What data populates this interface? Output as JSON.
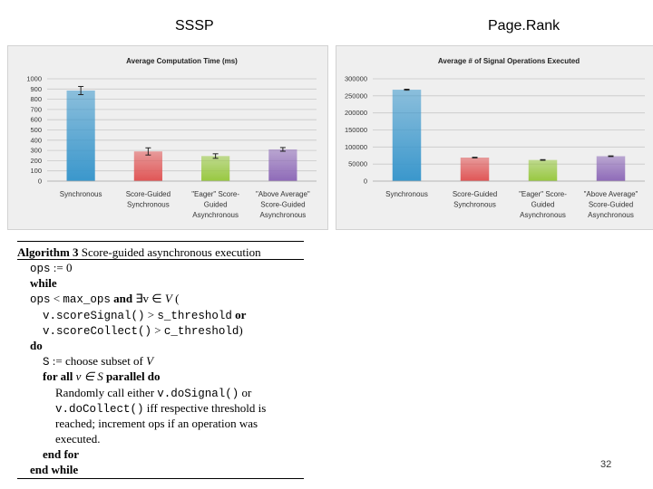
{
  "slide": {
    "left_title": "SSSP",
    "right_title": "Page.Rank",
    "page_number": "32"
  },
  "chart_data": [
    {
      "type": "bar",
      "title": "Average Computation Time (ms)",
      "categories": [
        "Synchronous",
        "Score-Guided Synchronous",
        "\"Eager\" Score-Guided Asynchronous",
        "\"Above Average\" Score-Guided Asynchronous"
      ],
      "category_lines": [
        [
          "Synchronous"
        ],
        [
          "Score-Guided",
          "Synchronous"
        ],
        [
          "\"Eager\" Score-",
          "Guided",
          "Asynchronous"
        ],
        [
          "\"Above Average\"",
          "Score-Guided",
          "Asynchronous"
        ]
      ],
      "values": [
        885,
        290,
        245,
        310
      ],
      "errors": [
        40,
        35,
        22,
        18
      ],
      "colors": [
        "#3a97cc",
        "#e05555",
        "#98c840",
        "#8e6ab8"
      ],
      "ylim": [
        0,
        1000
      ],
      "yticks": [
        0,
        100,
        200,
        300,
        400,
        500,
        600,
        700,
        800,
        900,
        1000
      ],
      "grid": true,
      "xlabel": "",
      "ylabel": ""
    },
    {
      "type": "bar",
      "title": "Average # of Signal Operations Executed",
      "categories": [
        "Synchronous",
        "Score-Guided Synchronous",
        "\"Eager\" Score-Guided Asynchronous",
        "\"Above Average\" Score-Guided Asynchronous"
      ],
      "category_lines": [
        [
          "Synchronous"
        ],
        [
          "Score-Guided",
          "Synchronous"
        ],
        [
          "\"Eager\" Score-",
          "Guided",
          "Asynchronous"
        ],
        [
          "\"Above Average\"",
          "Score-Guided",
          "Asynchronous"
        ]
      ],
      "values": [
        268000,
        69000,
        62000,
        73000
      ],
      "errors": [
        1500,
        1000,
        1000,
        1000
      ],
      "colors": [
        "#3a97cc",
        "#e05555",
        "#98c840",
        "#8e6ab8"
      ],
      "ylim": [
        0,
        300000
      ],
      "yticks": [
        0,
        50000,
        100000,
        150000,
        200000,
        250000,
        300000
      ],
      "grid": true,
      "xlabel": "",
      "ylabel": ""
    }
  ],
  "algorithm": {
    "label": "Algorithm 3",
    "title": "Score-guided asynchronous execution",
    "l1_var": "ops",
    "l1_assign": ":= 0",
    "l2_kw": "while",
    "l3_var": "ops",
    "l3_lt": "<",
    "l3_max": "max_ops",
    "l3_and": "and",
    "l3_exists": "∃v ∈",
    "l3_V": "V",
    "l3_paren": "(",
    "l4_call": "v.scoreSignal()",
    "l4_gt": ">",
    "l4_thr": "s_threshold",
    "l4_or": "or",
    "l5_call": "v.scoreCollect()",
    "l5_gt": ">",
    "l5_thr": "c_threshold",
    "l5_close": ")",
    "l6_kw": "do",
    "l7_S": "S",
    "l7_text": ":= choose subset of",
    "l7_V": "V",
    "l8_kw1": "for all",
    "l8_v": "v ∈ S",
    "l8_kw2": "parallel do",
    "l9_text": "Randomly call either",
    "l9_call": "v.doSignal()",
    "l9_or": "or",
    "l10_call": "v.doCollect()",
    "l10_text": "iff respective threshold is",
    "l11_text": "reached; increment ops if an operation was",
    "l12_text": "executed.",
    "l13_kw": "end for",
    "l14_kw": "end while"
  }
}
